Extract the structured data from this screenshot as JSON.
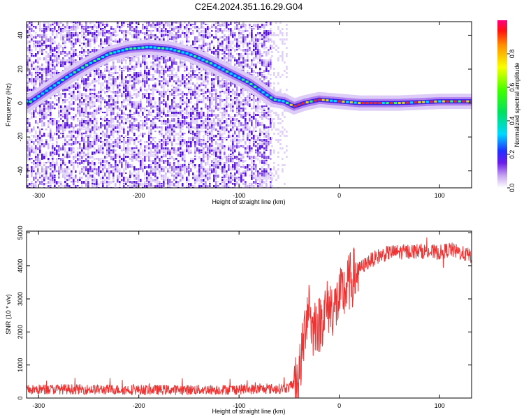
{
  "title": "C2E4.2024.351.16.29.G04",
  "chart_data": [
    {
      "type": "heatmap",
      "xlabel": "Height of straight line (km)",
      "ylabel": "Frequency (Hz)",
      "xlim": [
        -312,
        132
      ],
      "ylim": [
        -50,
        48
      ],
      "xticks": [
        -300,
        -200,
        -100,
        0,
        100
      ],
      "yticks": [
        -40,
        -20,
        0,
        20,
        40
      ],
      "colorbar": {
        "label": "Normalized spectral amplitude",
        "range": [
          0,
          1
        ],
        "ticks": [
          0.0,
          0.2,
          0.4,
          0.6,
          0.8
        ],
        "tick_labels": [
          "0.0",
          "0.2",
          "0.4",
          "0.6",
          "0.8"
        ]
      },
      "signal_trace": [
        {
          "x": -310,
          "y": 0
        },
        {
          "x": -290,
          "y": 8
        },
        {
          "x": -270,
          "y": 16
        },
        {
          "x": -250,
          "y": 23
        },
        {
          "x": -230,
          "y": 29
        },
        {
          "x": -210,
          "y": 32
        },
        {
          "x": -190,
          "y": 33
        },
        {
          "x": -170,
          "y": 32
        },
        {
          "x": -150,
          "y": 29
        },
        {
          "x": -130,
          "y": 24
        },
        {
          "x": -110,
          "y": 18
        },
        {
          "x": -90,
          "y": 12
        },
        {
          "x": -75,
          "y": 6
        },
        {
          "x": -65,
          "y": 2
        },
        {
          "x": -55,
          "y": 1
        },
        {
          "x": -45,
          "y": -2
        },
        {
          "x": -35,
          "y": 0
        },
        {
          "x": -20,
          "y": 2
        },
        {
          "x": 0,
          "y": 1
        },
        {
          "x": 20,
          "y": 0
        },
        {
          "x": 40,
          "y": 0
        },
        {
          "x": 60,
          "y": 0
        },
        {
          "x": 80,
          "y": 0.5
        },
        {
          "x": 100,
          "y": 1
        },
        {
          "x": 130,
          "y": 1
        }
      ],
      "noise_region_x": [
        -312,
        -68
      ]
    },
    {
      "type": "line",
      "xlabel": "Height of straight line (km)",
      "ylabel": "SNR (10 * v/v)",
      "xlim": [
        -312,
        132
      ],
      "ylim": [
        0,
        5050
      ],
      "xticks": [
        -300,
        -200,
        -100,
        0,
        100
      ],
      "yticks": [
        0,
        1000,
        2000,
        3000,
        4000,
        5000
      ],
      "series": [
        {
          "color": "#ee3333",
          "points": [
            {
              "x": -312,
              "y": 250
            },
            {
              "x": -280,
              "y": 270
            },
            {
              "x": -250,
              "y": 260
            },
            {
              "x": -200,
              "y": 250
            },
            {
              "x": -150,
              "y": 250
            },
            {
              "x": -100,
              "y": 260
            },
            {
              "x": -60,
              "y": 280
            },
            {
              "x": -50,
              "y": 320
            },
            {
              "x": -45,
              "y": 450
            },
            {
              "x": -40,
              "y": 700
            },
            {
              "x": -36,
              "y": 1600
            },
            {
              "x": -33,
              "y": 2500
            },
            {
              "x": -30,
              "y": 3000
            },
            {
              "x": -27,
              "y": 2000
            },
            {
              "x": -24,
              "y": 2300
            },
            {
              "x": -20,
              "y": 2200
            },
            {
              "x": -15,
              "y": 2600
            },
            {
              "x": -10,
              "y": 2800
            },
            {
              "x": -5,
              "y": 2700
            },
            {
              "x": 0,
              "y": 3000
            },
            {
              "x": 5,
              "y": 3200
            },
            {
              "x": 10,
              "y": 3500
            },
            {
              "x": 15,
              "y": 3700
            },
            {
              "x": 20,
              "y": 3900
            },
            {
              "x": 30,
              "y": 4150
            },
            {
              "x": 40,
              "y": 4300
            },
            {
              "x": 50,
              "y": 4400
            },
            {
              "x": 60,
              "y": 4420
            },
            {
              "x": 80,
              "y": 4450
            },
            {
              "x": 100,
              "y": 4400
            },
            {
              "x": 110,
              "y": 4500
            },
            {
              "x": 120,
              "y": 4400
            },
            {
              "x": 132,
              "y": 4300
            }
          ]
        }
      ]
    }
  ]
}
